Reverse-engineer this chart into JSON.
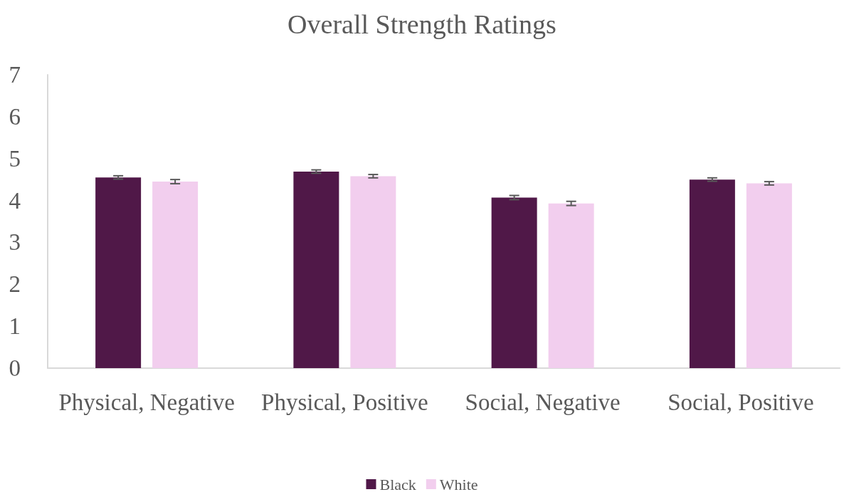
{
  "chart_data": {
    "type": "bar",
    "title": "Overall Strength Ratings",
    "categories": [
      "Physical, Negative",
      "Physical, Positive",
      "Social, Negative",
      "Social, Positive"
    ],
    "series": [
      {
        "name": "Black",
        "color": "#501848",
        "values": [
          4.55,
          4.69,
          4.07,
          4.5
        ],
        "errors": [
          0.04,
          0.04,
          0.05,
          0.04
        ]
      },
      {
        "name": "White",
        "color": "#f2ceee",
        "values": [
          4.45,
          4.58,
          3.93,
          4.41
        ],
        "errors": [
          0.05,
          0.04,
          0.05,
          0.04
        ]
      }
    ],
    "ylim": [
      0,
      7
    ],
    "yticks": [
      0,
      1,
      2,
      3,
      4,
      5,
      6,
      7
    ],
    "grid": false,
    "legend": "bottom"
  }
}
